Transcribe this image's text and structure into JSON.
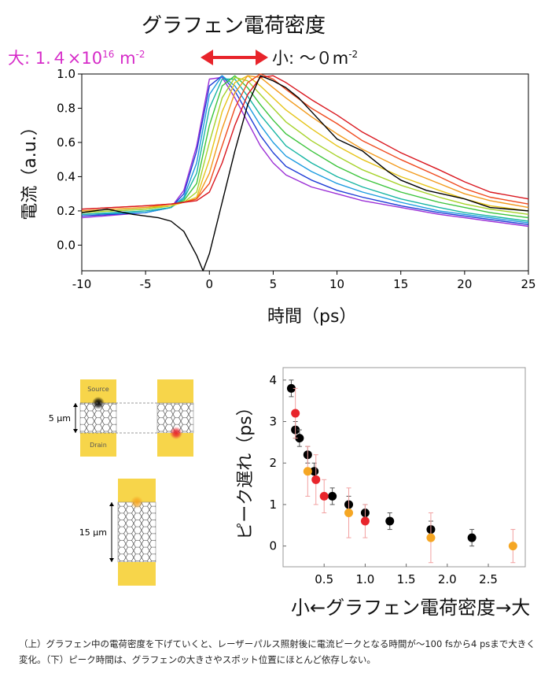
{
  "header": {
    "title": "グラフェン電荷密度",
    "high_prefix": "大: 1.４×10",
    "high_exp": "16",
    "high_unit": " m",
    "high_unit_exp": "-2",
    "low_prefix": "小: ～０m",
    "low_exp": "-2"
  },
  "colors": {
    "arrow": "#e8242b",
    "high": "#d62bc8",
    "pad": "#f7d54a",
    "series_black": "#000000",
    "series_red": "#e8242b",
    "series_orange": "#f5a623"
  },
  "diagrams": {
    "source_label": "Source",
    "drain_label": "Drain",
    "width_small": "5 µm",
    "width_large": "15 µm"
  },
  "caption": "（上）グラフェン中の電荷密度を下げていくと、レーザーパルス照射後に電流ピークとなる時間が～100 fsから4 psまで大きく変化。（下）ピーク時間は、グラフェンの大きさやスポット位置にほとんど依存しない。",
  "chart_data": [
    {
      "type": "line",
      "xlabel": "時間（ps）",
      "ylabel": "電流（a.u.）",
      "xlim": [
        -10,
        25
      ],
      "ylim": [
        -0.15,
        1.0
      ],
      "xticks": [
        "-10",
        "-5",
        "0",
        "5",
        "10",
        "15",
        "20",
        "25"
      ],
      "yticks": [
        "0.0",
        "0.2",
        "0.4",
        "0.6",
        "0.8",
        "1.0"
      ],
      "series": [
        {
          "color": "#9b2fd6",
          "x": [
            -10,
            -5,
            -3,
            -2,
            -1,
            0,
            1,
            2,
            3,
            4,
            5,
            6,
            8,
            10,
            12,
            15,
            18,
            20,
            22,
            25
          ],
          "y": [
            0.16,
            0.19,
            0.22,
            0.32,
            0.58,
            0.97,
            0.98,
            0.86,
            0.72,
            0.58,
            0.48,
            0.41,
            0.34,
            0.3,
            0.26,
            0.22,
            0.18,
            0.16,
            0.14,
            0.11
          ]
        },
        {
          "color": "#1f3dd6",
          "x": [
            -10,
            -5,
            -3,
            -2,
            -1,
            0,
            1,
            2,
            3,
            4,
            5,
            6,
            8,
            10,
            12,
            15,
            18,
            20,
            22,
            25
          ],
          "y": [
            0.17,
            0.19,
            0.22,
            0.3,
            0.55,
            0.93,
            0.99,
            0.9,
            0.77,
            0.64,
            0.54,
            0.46,
            0.38,
            0.32,
            0.28,
            0.23,
            0.19,
            0.17,
            0.15,
            0.12
          ]
        },
        {
          "color": "#1c9be0",
          "x": [
            -10,
            -5,
            -3,
            -2,
            -1,
            0,
            1,
            2,
            3,
            4,
            5,
            6,
            8,
            10,
            12,
            15,
            18,
            20,
            22,
            25
          ],
          "y": [
            0.18,
            0.19,
            0.22,
            0.28,
            0.48,
            0.88,
            0.99,
            0.93,
            0.82,
            0.7,
            0.6,
            0.52,
            0.43,
            0.36,
            0.31,
            0.25,
            0.2,
            0.18,
            0.16,
            0.13
          ]
        },
        {
          "color": "#17b5a3",
          "x": [
            -10,
            -5,
            -3,
            -2,
            -1,
            0,
            1,
            2,
            3,
            4,
            5,
            6,
            8,
            10,
            12,
            15,
            18,
            20,
            22,
            25
          ],
          "y": [
            0.18,
            0.2,
            0.22,
            0.27,
            0.42,
            0.8,
            0.97,
            0.97,
            0.87,
            0.76,
            0.67,
            0.58,
            0.48,
            0.4,
            0.34,
            0.27,
            0.22,
            0.19,
            0.17,
            0.14
          ]
        },
        {
          "color": "#3cc43c",
          "x": [
            -10,
            -5,
            -3,
            -2,
            -1,
            0,
            1,
            2,
            3,
            4,
            5,
            6,
            8,
            10,
            12,
            15,
            18,
            20,
            22,
            25
          ],
          "y": [
            0.19,
            0.21,
            0.23,
            0.26,
            0.36,
            0.7,
            0.93,
            0.99,
            0.92,
            0.82,
            0.73,
            0.65,
            0.55,
            0.46,
            0.39,
            0.31,
            0.25,
            0.22,
            0.19,
            0.16
          ]
        },
        {
          "color": "#a6d22a",
          "x": [
            -10,
            -5,
            -3,
            -2,
            -1,
            0,
            1,
            2,
            3,
            4,
            5,
            6,
            8,
            10,
            12,
            15,
            18,
            20,
            22,
            25
          ],
          "y": [
            0.19,
            0.21,
            0.23,
            0.25,
            0.31,
            0.6,
            0.86,
            0.98,
            0.96,
            0.88,
            0.8,
            0.72,
            0.61,
            0.52,
            0.44,
            0.35,
            0.28,
            0.24,
            0.21,
            0.18
          ]
        },
        {
          "color": "#e6c419",
          "x": [
            -10,
            -5,
            -3,
            -2,
            -1,
            0,
            1,
            2,
            3,
            4,
            5,
            6,
            8,
            10,
            12,
            15,
            18,
            20,
            22,
            25
          ],
          "y": [
            0.2,
            0.22,
            0.23,
            0.25,
            0.28,
            0.5,
            0.78,
            0.95,
            0.99,
            0.93,
            0.86,
            0.79,
            0.68,
            0.58,
            0.5,
            0.4,
            0.32,
            0.27,
            0.23,
            0.2
          ]
        },
        {
          "color": "#f29a1c",
          "x": [
            -10,
            -5,
            -3,
            -2,
            -1,
            0,
            1,
            2,
            3,
            4,
            5,
            6,
            8,
            10,
            12,
            15,
            18,
            20,
            22,
            25
          ],
          "y": [
            0.2,
            0.22,
            0.24,
            0.25,
            0.27,
            0.42,
            0.68,
            0.89,
            0.99,
            0.98,
            0.92,
            0.86,
            0.75,
            0.65,
            0.56,
            0.45,
            0.36,
            0.3,
            0.26,
            0.22
          ]
        },
        {
          "color": "#ef4a1e",
          "x": [
            -10,
            -5,
            -3,
            -2,
            -1,
            0,
            1,
            2,
            3,
            4,
            5,
            6,
            8,
            10,
            12,
            15,
            18,
            20,
            22,
            25
          ],
          "y": [
            0.21,
            0.23,
            0.24,
            0.25,
            0.27,
            0.36,
            0.58,
            0.8,
            0.95,
            1.0,
            0.97,
            0.91,
            0.8,
            0.71,
            0.61,
            0.5,
            0.4,
            0.33,
            0.28,
            0.24
          ]
        },
        {
          "color": "#d9161e",
          "x": [
            -10,
            -5,
            -3,
            -2,
            -1,
            0,
            1,
            2,
            3,
            4,
            5,
            6,
            8,
            10,
            12,
            15,
            18,
            20,
            22,
            25
          ],
          "y": [
            0.21,
            0.23,
            0.24,
            0.25,
            0.26,
            0.31,
            0.48,
            0.7,
            0.88,
            0.98,
            0.99,
            0.95,
            0.85,
            0.76,
            0.66,
            0.54,
            0.44,
            0.37,
            0.31,
            0.27
          ]
        },
        {
          "color": "#000000",
          "x": [
            -10,
            -8,
            -6,
            -4,
            -3,
            -2,
            -1,
            -0.5,
            0,
            1,
            2,
            3,
            4,
            5,
            6,
            7,
            8,
            10,
            12,
            14,
            15,
            17,
            20,
            22,
            25
          ],
          "y": [
            0.19,
            0.21,
            0.18,
            0.16,
            0.14,
            0.08,
            -0.06,
            -0.15,
            -0.05,
            0.25,
            0.55,
            0.82,
            0.99,
            0.96,
            0.92,
            0.86,
            0.78,
            0.62,
            0.55,
            0.43,
            0.38,
            0.32,
            0.27,
            0.22,
            0.2
          ]
        }
      ]
    },
    {
      "type": "scatter",
      "xlabel": "小←グラフェン電荷密度→大",
      "ylabel": "ピーク遅れ（ps）",
      "xlim": [
        0,
        2.95
      ],
      "ylim": [
        -0.5,
        4.3
      ],
      "xticks": [
        "0.5",
        "1.0",
        "1.5",
        "2.0",
        "2.5"
      ],
      "yticks": [
        "0",
        "1",
        "2",
        "3",
        "4"
      ],
      "series": [
        {
          "color": "#000000",
          "points": [
            [
              0.1,
              3.8,
              0.2
            ],
            [
              0.15,
              2.8,
              0.2
            ],
            [
              0.2,
              2.6,
              0.2
            ],
            [
              0.3,
              2.2,
              0.2
            ],
            [
              0.38,
              1.8,
              0.2
            ],
            [
              0.6,
              1.2,
              0.2
            ],
            [
              0.8,
              1.0,
              0.2
            ],
            [
              1.0,
              0.8,
              0.2
            ],
            [
              1.3,
              0.6,
              0.2
            ],
            [
              1.8,
              0.4,
              0.2
            ],
            [
              2.3,
              0.2,
              0.2
            ]
          ]
        },
        {
          "color": "#e8242b",
          "points": [
            [
              0.15,
              3.2,
              0.6
            ],
            [
              0.4,
              1.6,
              0.6
            ],
            [
              0.5,
              1.2,
              0.4
            ],
            [
              1.0,
              0.6,
              0.4
            ]
          ]
        },
        {
          "color": "#f5a623",
          "points": [
            [
              0.3,
              1.8,
              0.6
            ],
            [
              0.8,
              0.8,
              0.6
            ],
            [
              1.8,
              0.2,
              0.6
            ],
            [
              2.8,
              0.0,
              0.4
            ]
          ]
        }
      ]
    }
  ]
}
